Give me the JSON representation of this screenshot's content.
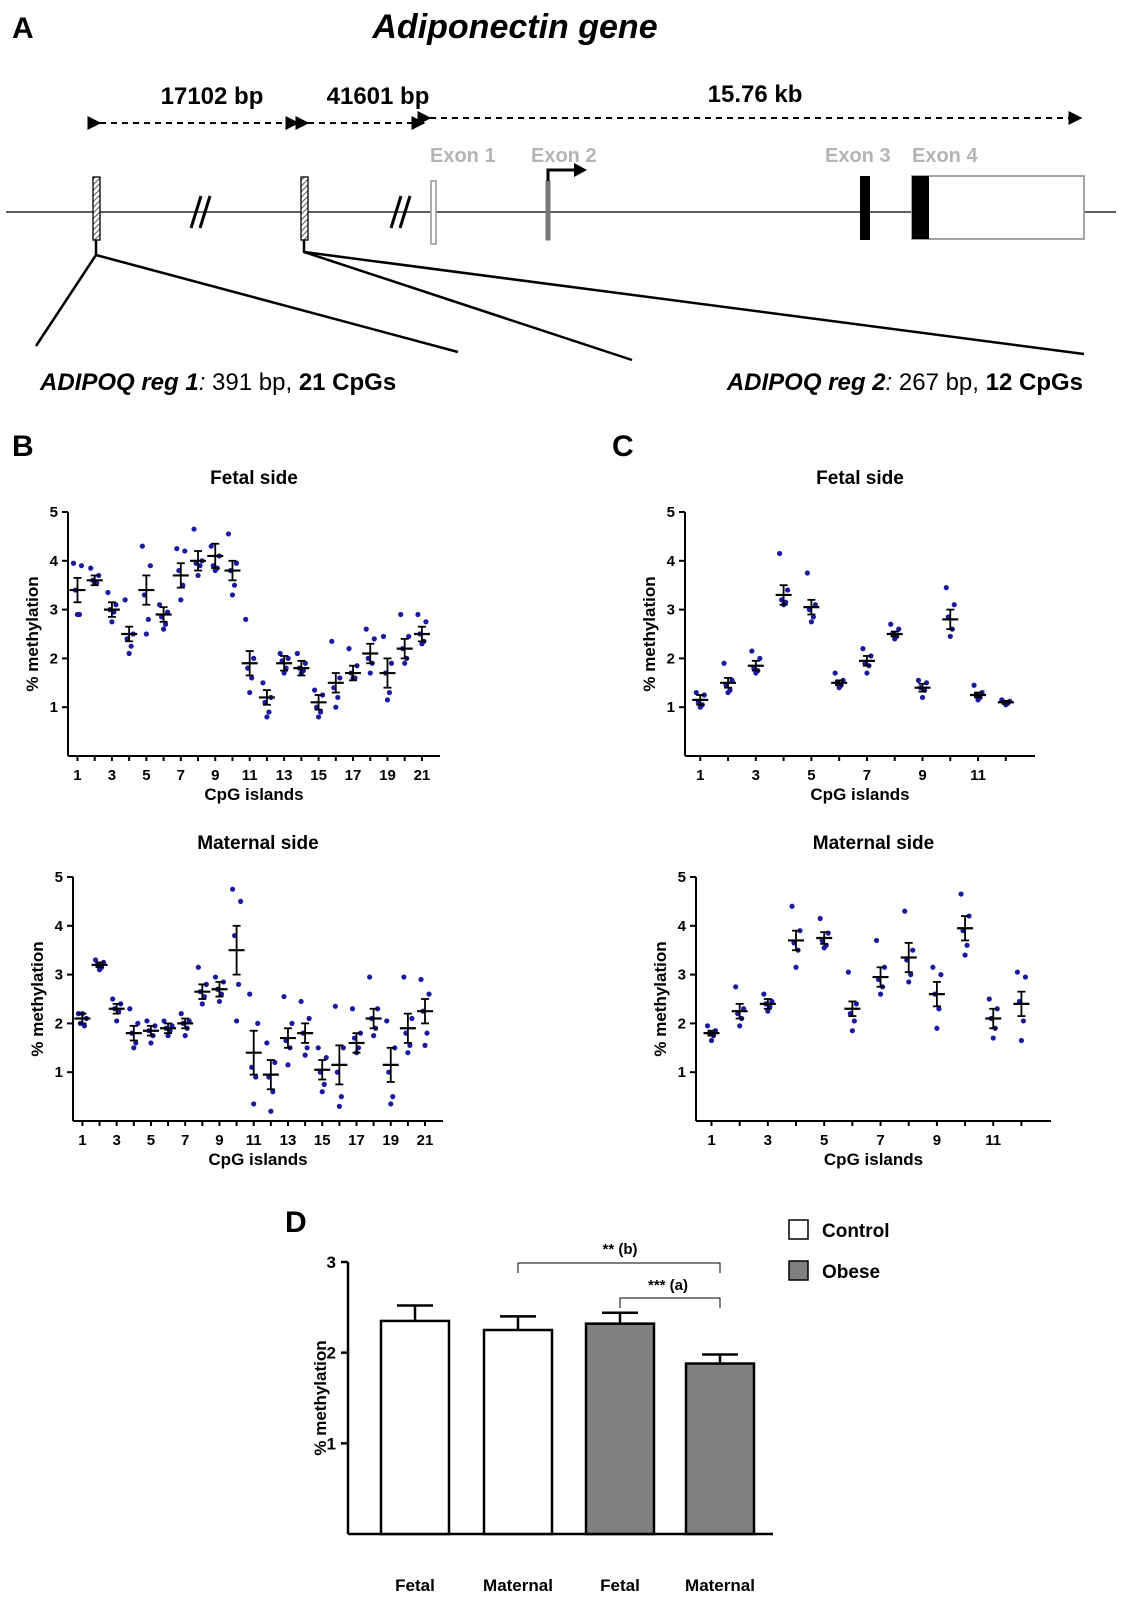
{
  "colors": {
    "dot": "#1a1aa0",
    "obese_bar": "#808080",
    "control_bar": "#ffffff",
    "exon_outline": "#9a9a9a"
  },
  "panel_a": {
    "letter": "A",
    "title": "Adiponectin gene",
    "spans": [
      "17102 bp",
      "41601 bp",
      "15.76 kb"
    ],
    "exons": [
      "Exon 1",
      "Exon 2",
      "Exon 3",
      "Exon 4"
    ],
    "region1": {
      "name": "ADIPOQ reg 1",
      "colon": ":",
      "size": " 391 bp, ",
      "cpgs": "21 CpGs"
    },
    "region2": {
      "name": "ADIPOQ reg 2",
      "colon": ":",
      "size": " 267 bp, ",
      "cpgs": "12 CpGs"
    }
  },
  "panel_letters": {
    "b": "B",
    "c": "C",
    "d": "D"
  },
  "chart_data": [
    {
      "type": "scatter",
      "panel": "B",
      "title": "Fetal side",
      "xlabel": "CpG islands",
      "ylabel": "% methylation",
      "ylim": [
        0,
        5
      ],
      "yticks": [
        "1",
        "2",
        "3",
        "4",
        "5"
      ],
      "xtick_labels": [
        "1",
        "3",
        "5",
        "7",
        "9",
        "11",
        "13",
        "15",
        "17",
        "19",
        "21"
      ],
      "x": [
        1,
        2,
        3,
        4,
        5,
        6,
        7,
        8,
        9,
        10,
        11,
        12,
        13,
        14,
        15,
        16,
        17,
        18,
        19,
        20,
        21
      ],
      "mean": [
        3.4,
        3.6,
        3.0,
        2.5,
        3.4,
        2.9,
        3.7,
        4.0,
        4.1,
        3.8,
        1.9,
        1.2,
        1.9,
        1.8,
        1.1,
        1.5,
        1.7,
        2.1,
        1.7,
        2.2,
        2.5
      ],
      "sem": [
        0.25,
        0.1,
        0.15,
        0.15,
        0.3,
        0.15,
        0.25,
        0.2,
        0.25,
        0.2,
        0.25,
        0.15,
        0.15,
        0.15,
        0.15,
        0.2,
        0.15,
        0.2,
        0.3,
        0.2,
        0.15
      ],
      "points": [
        [
          3.95,
          3.9,
          3.4,
          2.9,
          2.9
        ],
        [
          3.85,
          3.7,
          3.6,
          3.55,
          3.55
        ],
        [
          3.35,
          3.1,
          3.0,
          2.95,
          2.75
        ],
        [
          3.2,
          2.5,
          2.4,
          2.25,
          2.1
        ],
        [
          4.3,
          3.9,
          3.3,
          2.8,
          2.5
        ],
        [
          3.1,
          2.95,
          2.85,
          2.7,
          2.6
        ],
        [
          4.25,
          4.2,
          3.8,
          3.5,
          3.2
        ],
        [
          4.65,
          4.0,
          3.95,
          3.9,
          3.7
        ],
        [
          4.3,
          4.1,
          3.9,
          3.85,
          3.8
        ],
        [
          4.55,
          3.95,
          3.8,
          3.5,
          3.3
        ],
        [
          2.8,
          2.0,
          1.8,
          1.6,
          1.3
        ],
        [
          1.5,
          1.2,
          1.1,
          0.9,
          0.8
        ],
        [
          2.1,
          2.0,
          1.95,
          1.8,
          1.7
        ],
        [
          2.1,
          1.9,
          1.8,
          1.75,
          1.7
        ],
        [
          1.35,
          1.25,
          1.0,
          0.9,
          0.8
        ],
        [
          2.35,
          1.6,
          1.4,
          1.2,
          1.0
        ],
        [
          2.2,
          1.85,
          1.7,
          1.6,
          1.6
        ],
        [
          2.6,
          2.4,
          2.0,
          1.9,
          1.7
        ],
        [
          2.45,
          1.9,
          1.7,
          1.3,
          1.15
        ],
        [
          2.9,
          2.45,
          2.2,
          2.0,
          1.9
        ],
        [
          2.9,
          2.75,
          2.5,
          2.35,
          2.3
        ]
      ]
    },
    {
      "type": "scatter",
      "panel": "B",
      "title": "Maternal side",
      "xlabel": "CpG islands",
      "ylabel": "% methylation",
      "ylim": [
        0,
        5
      ],
      "yticks": [
        "1",
        "2",
        "3",
        "4",
        "5"
      ],
      "xtick_labels": [
        "1",
        "3",
        "5",
        "7",
        "9",
        "11",
        "13",
        "15",
        "17",
        "19",
        "21"
      ],
      "x": [
        1,
        2,
        3,
        4,
        5,
        6,
        7,
        8,
        9,
        10,
        11,
        12,
        13,
        14,
        15,
        16,
        17,
        18,
        19,
        20,
        21
      ],
      "mean": [
        2.1,
        3.2,
        2.3,
        1.8,
        1.85,
        1.9,
        2.0,
        2.65,
        2.7,
        3.5,
        1.4,
        0.95,
        1.7,
        1.8,
        1.05,
        1.15,
        1.6,
        2.1,
        1.15,
        1.9,
        2.25
      ],
      "sem": [
        0.1,
        0.05,
        0.1,
        0.15,
        0.1,
        0.1,
        0.1,
        0.15,
        0.15,
        0.5,
        0.45,
        0.3,
        0.2,
        0.2,
        0.2,
        0.4,
        0.2,
        0.2,
        0.35,
        0.3,
        0.25
      ],
      "points": [
        [
          2.2,
          2.1,
          2.0,
          1.95,
          2.2
        ],
        [
          3.3,
          3.25,
          3.2,
          3.15,
          3.1
        ],
        [
          2.5,
          2.4,
          2.3,
          2.25,
          2.05
        ],
        [
          2.3,
          2.0,
          1.8,
          1.6,
          1.5
        ],
        [
          2.05,
          1.95,
          1.85,
          1.75,
          1.6
        ],
        [
          2.05,
          1.95,
          1.9,
          1.85,
          1.75
        ],
        [
          2.2,
          2.05,
          2.0,
          1.9,
          1.75
        ],
        [
          3.15,
          2.8,
          2.65,
          2.55,
          2.4
        ],
        [
          2.95,
          2.85,
          2.7,
          2.6,
          2.45
        ],
        [
          4.75,
          4.5,
          3.8,
          2.8,
          2.05
        ],
        [
          2.6,
          2.0,
          1.1,
          0.9,
          0.35
        ],
        [
          1.6,
          1.2,
          0.9,
          0.6,
          0.2
        ],
        [
          2.55,
          2.0,
          1.65,
          1.5,
          1.15
        ],
        [
          2.45,
          2.1,
          1.8,
          1.5,
          1.35
        ],
        [
          1.5,
          1.3,
          1.0,
          0.75,
          0.6
        ],
        [
          2.35,
          1.5,
          1.0,
          0.5,
          0.3
        ],
        [
          2.3,
          1.8,
          1.7,
          1.5,
          1.4
        ],
        [
          2.95,
          2.3,
          2.1,
          1.9,
          1.75
        ],
        [
          2.05,
          1.5,
          1.0,
          0.5,
          0.35
        ],
        [
          2.95,
          2.1,
          1.8,
          1.55,
          1.4
        ],
        [
          2.9,
          2.6,
          2.25,
          1.8,
          1.55
        ]
      ]
    },
    {
      "type": "scatter",
      "panel": "C",
      "title": "Fetal side",
      "xlabel": "CpG islands",
      "ylabel": "% methylation",
      "ylim": [
        0,
        5
      ],
      "yticks": [
        "1",
        "2",
        "3",
        "4",
        "5"
      ],
      "xtick_labels": [
        "1",
        "3",
        "5",
        "7",
        "9",
        "11"
      ],
      "x": [
        1,
        2,
        3,
        4,
        5,
        6,
        7,
        8,
        9,
        10,
        11,
        12
      ],
      "mean": [
        1.15,
        1.5,
        1.85,
        3.3,
        3.05,
        1.5,
        1.95,
        2.5,
        1.4,
        2.8,
        1.25,
        1.1
      ],
      "sem": [
        0.1,
        0.1,
        0.1,
        0.2,
        0.15,
        0.05,
        0.1,
        0.05,
        0.08,
        0.2,
        0.05,
        0.03
      ],
      "points": [
        [
          1.3,
          1.25,
          1.1,
          1.05,
          1.0
        ],
        [
          1.9,
          1.55,
          1.45,
          1.35,
          1.3
        ],
        [
          2.15,
          2.0,
          1.8,
          1.75,
          1.7
        ],
        [
          4.15,
          3.4,
          3.2,
          3.15,
          3.1
        ],
        [
          3.75,
          3.1,
          3.0,
          2.85,
          2.75
        ],
        [
          1.7,
          1.55,
          1.5,
          1.45,
          1.4
        ],
        [
          2.2,
          2.05,
          1.9,
          1.85,
          1.7
        ],
        [
          2.7,
          2.6,
          2.5,
          2.45,
          2.4
        ],
        [
          1.55,
          1.5,
          1.4,
          1.35,
          1.2
        ],
        [
          3.45,
          3.1,
          2.85,
          2.6,
          2.45
        ],
        [
          1.45,
          1.3,
          1.25,
          1.2,
          1.15
        ],
        [
          1.15,
          1.12,
          1.1,
          1.08,
          1.05
        ]
      ]
    },
    {
      "type": "scatter",
      "panel": "C",
      "title": "Maternal side",
      "xlabel": "CpG islands",
      "ylabel": "% methylation",
      "ylim": [
        0,
        5
      ],
      "yticks": [
        "1",
        "2",
        "3",
        "4",
        "5"
      ],
      "xtick_labels": [
        "1",
        "3",
        "5",
        "7",
        "9",
        "11"
      ],
      "x": [
        1,
        2,
        3,
        4,
        5,
        6,
        7,
        8,
        9,
        10,
        11,
        12
      ],
      "mean": [
        1.8,
        2.25,
        2.4,
        3.7,
        3.75,
        2.3,
        2.95,
        3.35,
        2.6,
        3.95,
        2.1,
        2.4
      ],
      "sem": [
        0.05,
        0.15,
        0.1,
        0.2,
        0.12,
        0.15,
        0.2,
        0.3,
        0.25,
        0.25,
        0.2,
        0.25
      ],
      "points": [
        [
          1.95,
          1.85,
          1.8,
          1.75,
          1.65
        ],
        [
          2.75,
          2.3,
          2.2,
          2.1,
          1.95
        ],
        [
          2.6,
          2.45,
          2.4,
          2.35,
          2.25
        ],
        [
          4.4,
          3.9,
          3.65,
          3.5,
          3.15
        ],
        [
          4.15,
          3.85,
          3.7,
          3.6,
          3.55
        ],
        [
          3.05,
          2.4,
          2.2,
          2.05,
          1.85
        ],
        [
          3.7,
          3.15,
          2.9,
          2.75,
          2.6
        ],
        [
          4.3,
          3.5,
          3.3,
          3.0,
          2.85
        ],
        [
          3.15,
          3.0,
          2.6,
          2.3,
          1.9
        ],
        [
          4.65,
          4.2,
          3.9,
          3.6,
          3.4
        ],
        [
          2.5,
          2.3,
          2.1,
          1.9,
          1.7
        ],
        [
          3.05,
          2.95,
          2.45,
          2.05,
          1.65
        ]
      ]
    },
    {
      "type": "bar",
      "panel": "D",
      "xlabel": "",
      "ylabel": "% methylation",
      "ylim": [
        0,
        3
      ],
      "yticks": [
        "1",
        "2",
        "3"
      ],
      "categories": [
        "Fetal",
        "Maternal",
        "Fetal",
        "Maternal"
      ],
      "groups": [
        "Control",
        "Control",
        "Obese",
        "Obese"
      ],
      "values": [
        2.35,
        2.25,
        2.32,
        1.88
      ],
      "errors": [
        0.17,
        0.15,
        0.12,
        0.1
      ],
      "legend": [
        "Control",
        "Obese"
      ],
      "legend_position": "top-right",
      "annotations": [
        {
          "text": "** (b)",
          "from": 1,
          "to": 3
        },
        {
          "text": "*** (a)",
          "from": 2,
          "to": 3
        }
      ]
    }
  ]
}
